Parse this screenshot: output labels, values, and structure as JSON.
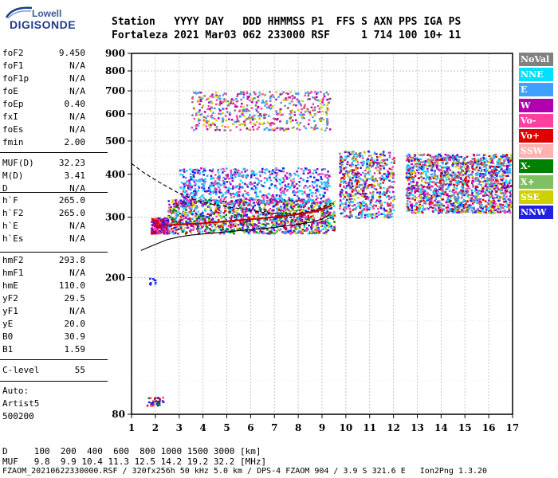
{
  "logo": {
    "line1": "Lowell",
    "line2": "DIGISONDE"
  },
  "header": {
    "line1": "Station   YYYY DAY   DDD HHMMSS P1  FFS S AXN PPS IGA PS",
    "line2": "Fortaleza 2021 Mar03 062 233000 RSF     1 714 100 10+ 11"
  },
  "scaled": [
    {
      "label": "foF2",
      "value": "9.450"
    },
    {
      "label": "foF1",
      "value": "N/A"
    },
    {
      "label": "foF1p",
      "value": "N/A"
    },
    {
      "label": "foE",
      "value": "N/A"
    },
    {
      "label": "foEp",
      "value": "0.40"
    },
    {
      "label": "fxI",
      "value": "N/A"
    },
    {
      "label": "foEs",
      "value": "N/A"
    },
    {
      "label": "fmin",
      "value": "2.00"
    },
    {
      "label": "MUF(D)",
      "value": "32.23"
    },
    {
      "label": "M(D)",
      "value": "3.41"
    },
    {
      "label": "D",
      "value": "N/A"
    },
    {
      "label": "h`F",
      "value": "265.0"
    },
    {
      "label": "h`F2",
      "value": "265.0"
    },
    {
      "label": "h`E",
      "value": "N/A"
    },
    {
      "label": "h`Es",
      "value": "N/A"
    },
    {
      "label": "hmF2",
      "value": "293.8"
    },
    {
      "label": "hmF1",
      "value": "N/A"
    },
    {
      "label": "hmE",
      "value": "110.0"
    },
    {
      "label": "yF2",
      "value": "29.5"
    },
    {
      "label": "yF1",
      "value": "N/A"
    },
    {
      "label": "yE",
      "value": "20.0"
    },
    {
      "label": "B0",
      "value": "30.9"
    },
    {
      "label": "B1",
      "value": "1.59"
    },
    {
      "label": "C-level",
      "value": "55"
    }
  ],
  "auto": {
    "line1": "Auto:",
    "line2": "Artist5",
    "line3": "500200"
  },
  "legend": [
    {
      "label": "NoVal",
      "color": "#808080"
    },
    {
      "label": "NNE",
      "color": "#00e0ff"
    },
    {
      "label": "E",
      "color": "#40a0ff"
    },
    {
      "label": "W",
      "color": "#b000b0"
    },
    {
      "label": "Vo-",
      "color": "#ff40a0"
    },
    {
      "label": "Vo+",
      "color": "#e00000"
    },
    {
      "label": "SSW",
      "color": "#ffb0b0"
    },
    {
      "label": "X-",
      "color": "#008000"
    },
    {
      "label": "X+",
      "color": "#80c060"
    },
    {
      "label": "SSE",
      "color": "#d0d000"
    },
    {
      "label": "NNW",
      "color": "#2020e0"
    }
  ],
  "footer": {
    "d_line": "D     100  200  400  600  800 1000 1500 3000 [km]",
    "muf_line": "MUF   9.8  9.9 10.4 11.3 12.5 14.2 19.2 32.2 [MHz]",
    "file_line": "FZAOM_20210622330000.RSF / 320fx256h 50 kHz 5.0 km / DPS-4 FZAOM 904 / 3.9 S 321.6 E   Ion2Png 1.3.20"
  },
  "chart_data": {
    "type": "scatter",
    "title": "",
    "xlabel": "",
    "ylabel": "",
    "xlim": [
      1,
      17
    ],
    "ylim": [
      80,
      900
    ],
    "y_scale": "log",
    "xticks": [
      1,
      2,
      3,
      4,
      5,
      6,
      7,
      8,
      9,
      10,
      11,
      12,
      13,
      14,
      15,
      16,
      17
    ],
    "yticks": [
      80,
      200,
      300,
      400,
      500,
      600,
      700,
      800,
      900
    ],
    "grid": true,
    "legend_position": "right",
    "traces": [
      {
        "name": "",
        "color": "#000000",
        "style": "solid",
        "x": [
          1.4,
          2.0,
          2.5,
          3.0,
          3.5,
          4.0,
          4.5,
          5.0,
          5.5,
          6.0,
          6.5,
          7.0,
          7.5,
          8.0,
          8.5,
          9.0,
          9.3
        ],
        "y": [
          240,
          250,
          258,
          263,
          266,
          268,
          270,
          272,
          274,
          276,
          278,
          280,
          283,
          286,
          290,
          296,
          305
        ]
      },
      {
        "name": "",
        "color": "#000000",
        "style": "dashed",
        "x": [
          1.0,
          1.5,
          2.0,
          2.5,
          3.0,
          3.5,
          4.0,
          4.5,
          5.0,
          5.5,
          6.0,
          6.5,
          7.0,
          7.5,
          8.0,
          8.5,
          9.0,
          9.4
        ],
        "y": [
          430,
          405,
          385,
          368,
          352,
          340,
          332,
          326,
          322,
          318,
          314,
          310,
          308,
          307,
          308,
          312,
          320,
          330
        ]
      },
      {
        "name": "",
        "color": "#c00000",
        "style": "solid",
        "x": [
          2.0,
          2.5,
          3.0,
          3.5,
          4.0,
          4.5,
          5.0,
          5.5,
          6.0,
          6.5,
          7.0,
          7.5,
          8.0,
          8.5,
          9.0,
          9.4
        ],
        "y": [
          282,
          284,
          286,
          287,
          288,
          290,
          292,
          294,
          296,
          298,
          300,
          303,
          306,
          310,
          316,
          325
        ]
      }
    ],
    "clusters": [
      {
        "x": [
          1.8,
          2.5
        ],
        "y": [
          270,
          300
        ],
        "colors": [
          "#e00000",
          "#b000b0",
          "#ff40a0",
          "#2020e0"
        ],
        "n": 260
      },
      {
        "x": [
          2.5,
          9.5
        ],
        "y": [
          270,
          340
        ],
        "colors": [
          "#e00000",
          "#b000b0",
          "#ff40a0",
          "#40a0ff",
          "#2020e0",
          "#00e0ff",
          "#d0d000",
          "#008000"
        ],
        "n": 1400
      },
      {
        "x": [
          3.0,
          9.3
        ],
        "y": [
          330,
          420
        ],
        "colors": [
          "#40a0ff",
          "#00e0ff",
          "#b000b0",
          "#2020e0",
          "#ff40a0"
        ],
        "n": 700
      },
      {
        "x": [
          3.5,
          9.3
        ],
        "y": [
          540,
          700
        ],
        "colors": [
          "#d0d000",
          "#40a0ff",
          "#808080",
          "#ff40a0",
          "#b000b0"
        ],
        "n": 520
      },
      {
        "x": [
          9.7,
          12.0
        ],
        "y": [
          300,
          470
        ],
        "colors": [
          "#e00000",
          "#b000b0",
          "#ff40a0",
          "#2020e0",
          "#d0d000",
          "#40a0ff",
          "#808080",
          "#00e0ff"
        ],
        "n": 620
      },
      {
        "x": [
          12.5,
          16.9
        ],
        "y": [
          310,
          460
        ],
        "colors": [
          "#2020e0",
          "#40a0ff",
          "#808080",
          "#b000b0",
          "#ff40a0",
          "#00e0ff",
          "#d0d000",
          "#e00000"
        ],
        "n": 1600
      },
      {
        "x": [
          1.6,
          2.3
        ],
        "y": [
          85,
          90
        ],
        "colors": [
          "#e00000",
          "#2020e0",
          "#008000",
          "#ff40a0"
        ],
        "n": 40
      },
      {
        "x": [
          1.7,
          2.0
        ],
        "y": [
          192,
          200
        ],
        "colors": [
          "#40a0ff",
          "#2020e0"
        ],
        "n": 10
      }
    ]
  }
}
